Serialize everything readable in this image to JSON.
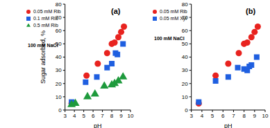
{
  "chart_data": [
    {
      "type": "scatter",
      "title": "(a)",
      "annotation": "100 mM NaCl",
      "x_label": "pH",
      "y_label": "Sugar adsorbed, %",
      "xlim": [
        3,
        10
      ],
      "xticks": [
        3,
        4,
        5,
        6,
        7,
        8,
        9,
        10
      ],
      "ylim": [
        0,
        80
      ],
      "yticks": [
        0,
        10,
        20,
        30,
        40,
        50,
        60,
        70,
        80
      ],
      "grid": false,
      "legend": "upper left",
      "series": [
        {
          "name": "0.05 mM Rib",
          "color": "#e8231f",
          "marker": "circle",
          "x": [
            3.7,
            5.3,
            6.5,
            7.5,
            8.0,
            8.3,
            8.7,
            9.0,
            9.3
          ],
          "values": [
            5,
            26,
            35,
            43,
            50,
            51,
            55,
            59,
            63
          ]
        },
        {
          "name": "0.1 mM Rib",
          "color": "#1f5fe0",
          "marker": "square",
          "x": [
            3.7,
            5.2,
            6.4,
            7.5,
            8.0,
            8.4,
            8.6,
            9.2
          ],
          "values": [
            6,
            21,
            25,
            32,
            35,
            43,
            42,
            50
          ]
        },
        {
          "name": "0.5 mM Rib",
          "color": "#1e9a3c",
          "marker": "triangle",
          "x": [
            3.7,
            4.1,
            5.4,
            6.2,
            7.2,
            8.0,
            8.3,
            8.7,
            9.2
          ],
          "values": [
            4,
            5,
            10,
            12,
            18,
            19,
            20,
            22,
            25
          ]
        }
      ]
    },
    {
      "type": "scatter",
      "title": "(b)",
      "annotation": "100 mM NaCl",
      "x_label": "pH",
      "xlim": [
        3,
        10
      ],
      "xticks": [
        3,
        4,
        5,
        6,
        7,
        8,
        9,
        10
      ],
      "ylim": [
        0,
        80
      ],
      "yticks": [
        0,
        10,
        20,
        30,
        40,
        50,
        60,
        70,
        80
      ],
      "grid": false,
      "legend": "upper left",
      "series": [
        {
          "name": "0.05 mM Rib",
          "color": "#e8231f",
          "marker": "circle",
          "x": [
            3.7,
            5.3,
            6.5,
            7.5,
            8.0,
            8.3,
            8.7,
            9.0,
            9.3
          ],
          "values": [
            5,
            26,
            35,
            43,
            50,
            51,
            55,
            59,
            63
          ]
        },
        {
          "name": "0.05 mM Xyl",
          "color": "#1f5fe0",
          "marker": "square",
          "x": [
            3.7,
            5.3,
            6.5,
            7.4,
            8.0,
            8.3,
            8.5,
            8.7,
            9.2
          ],
          "values": [
            6,
            22,
            25,
            32,
            31,
            30,
            33,
            34,
            40
          ]
        }
      ]
    }
  ]
}
